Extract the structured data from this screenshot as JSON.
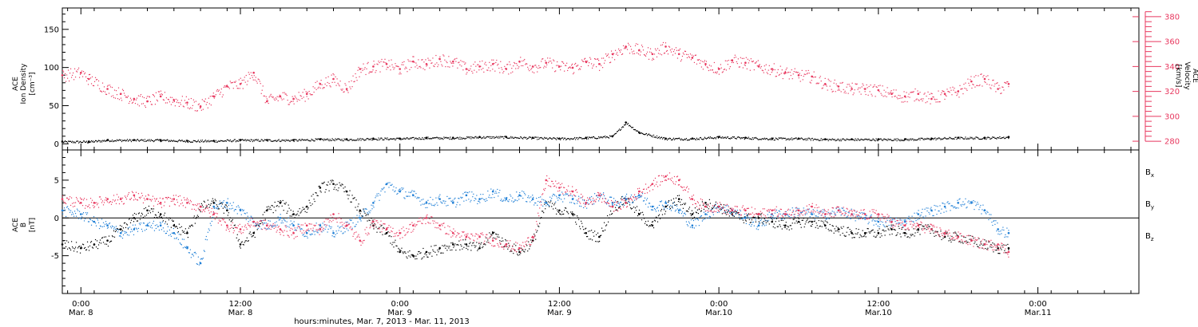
{
  "colors": {
    "density": "#000000",
    "velocity": "#e8385f",
    "bx": "#000000",
    "by": "#1f7fd6",
    "bz": "#e8385f",
    "frame": "#000000"
  },
  "time_axis": {
    "label": "hours:minutes, Mar. 7, 2013 - Mar. 11, 2013",
    "range_hours": [
      -0.7,
      39.8
    ],
    "ticks": [
      {
        "hours": 0,
        "time": "0:00",
        "date": "Mar. 8"
      },
      {
        "hours": 6,
        "time": "12:00",
        "date": "Mar. 8"
      },
      {
        "hours": 12,
        "time": "0:00",
        "date": "Mar. 9"
      },
      {
        "hours": 18,
        "time": "12:00",
        "date": "Mar. 9"
      },
      {
        "hours": 24,
        "time": "0:00",
        "date": "Mar.10"
      },
      {
        "hours": 30,
        "time": "12:00",
        "date": "Mar.10"
      },
      {
        "hours": 36,
        "time": "0:00",
        "date": "Mar.11"
      }
    ]
  },
  "chart_data": [
    {
      "type": "scatter",
      "panel": "top",
      "left_axis": {
        "label_lines": [
          "ACE",
          "Ion Density",
          "[cm⁻³]"
        ],
        "ylim": [
          -8,
          178
        ],
        "ticks": [
          0,
          50,
          100,
          150
        ]
      },
      "right_axis": {
        "label_lines": [
          "ACE",
          "Velocity",
          "[km/s]"
        ],
        "ylim": [
          273,
          387
        ],
        "ticks": [
          280,
          300,
          320,
          340,
          360,
          380
        ]
      },
      "series": [
        {
          "key": "density",
          "axis": "left",
          "x": [
            -0.7,
            0.3,
            1.0,
            2.0,
            3.0,
            4.0,
            5.0,
            6.0,
            7.0,
            8.0,
            9.0,
            10.0,
            11.0,
            12.0,
            13.0,
            14.0,
            15.0,
            16.0,
            17.0,
            18.0,
            19.0,
            20.0,
            20.5,
            21.0,
            22.0,
            23.0,
            24.0,
            25.0,
            26.0,
            27.0,
            28.0,
            29.0,
            30.0,
            31.0,
            32.0,
            33.0,
            34.0,
            34.9
          ],
          "y": [
            3,
            3,
            5,
            5,
            5,
            4,
            4,
            5,
            5,
            5,
            6,
            6,
            7,
            7,
            8,
            8,
            9,
            9,
            8,
            7,
            8,
            10,
            28,
            15,
            7,
            7,
            9,
            8,
            7,
            7,
            6,
            6,
            6,
            6,
            7,
            8,
            8,
            9
          ]
        },
        {
          "key": "velocity",
          "axis": "right",
          "x": [
            -0.7,
            0.0,
            0.3,
            1.0,
            1.5,
            2.0,
            2.5,
            3.0,
            3.5,
            4.0,
            4.5,
            5.0,
            5.5,
            6.0,
            6.5,
            7.0,
            7.5,
            8.0,
            8.5,
            9.0,
            9.5,
            10.0,
            10.5,
            11.0,
            11.5,
            12.0,
            12.5,
            13.0,
            13.5,
            14.0,
            14.5,
            15.0,
            15.5,
            16.0,
            16.5,
            17.0,
            17.5,
            18.0,
            18.5,
            19.0,
            19.5,
            20.0,
            20.5,
            21.0,
            21.5,
            22.0,
            22.5,
            23.0,
            23.5,
            24.0,
            24.5,
            25.0,
            25.5,
            26.0,
            26.5,
            27.0,
            27.5,
            28.0,
            28.5,
            29.0,
            29.5,
            30.0,
            30.5,
            31.0,
            31.5,
            32.0,
            32.5,
            33.0,
            33.5,
            34.0,
            34.5,
            34.9
          ],
          "y": [
            333,
            335,
            330,
            322,
            318,
            314,
            312,
            316,
            313,
            311,
            308,
            316,
            324,
            326,
            335,
            312,
            316,
            314,
            318,
            326,
            330,
            322,
            338,
            340,
            342,
            338,
            344,
            342,
            346,
            344,
            338,
            340,
            342,
            338,
            344,
            340,
            343,
            340,
            339,
            344,
            342,
            350,
            356,
            353,
            350,
            356,
            350,
            347,
            342,
            338,
            345,
            343,
            340,
            338,
            335,
            333,
            332,
            326,
            324,
            322,
            322,
            321,
            318,
            316,
            318,
            314,
            318,
            320,
            328,
            330,
            322,
            326
          ]
        }
      ]
    },
    {
      "type": "scatter",
      "panel": "bottom",
      "left_axis": {
        "label_lines": [
          "ACE",
          "B",
          "[nT]"
        ],
        "ylim": [
          -10,
          9
        ],
        "ticks": [
          -5,
          0,
          5
        ]
      },
      "zero_line": true,
      "legend": [
        {
          "text": "B",
          "sub": "x",
          "key": "bx"
        },
        {
          "text": "B",
          "sub": "y",
          "key": "by"
        },
        {
          "text": "B",
          "sub": "z",
          "key": "bz"
        }
      ],
      "series": [
        {
          "key": "bx",
          "x": [
            -0.7,
            0.0,
            0.5,
            1.0,
            1.5,
            2.0,
            2.5,
            3.0,
            3.5,
            4.0,
            4.5,
            5.0,
            5.5,
            6.0,
            6.5,
            7.0,
            7.5,
            8.0,
            8.5,
            9.0,
            9.5,
            10.0,
            10.5,
            11.0,
            11.5,
            12.0,
            12.5,
            13.0,
            13.5,
            14.0,
            14.5,
            15.0,
            15.5,
            16.0,
            16.5,
            17.0,
            17.5,
            18.0,
            18.5,
            19.0,
            19.5,
            20.0,
            20.5,
            21.0,
            21.5,
            22.0,
            22.5,
            23.0,
            23.5,
            24.0,
            24.5,
            25.0,
            25.5,
            26.0,
            26.5,
            27.0,
            27.5,
            28.0,
            28.5,
            29.0,
            29.5,
            30.0,
            30.5,
            31.0,
            31.5,
            32.0,
            32.5,
            33.0,
            33.5,
            34.0,
            34.5,
            34.9
          ],
          "y": [
            -3.5,
            -4.0,
            -3.5,
            -3.0,
            -1.5,
            0.0,
            1.0,
            0.5,
            -1.0,
            -2.0,
            1.5,
            2.0,
            1.0,
            -3.5,
            -2.0,
            1.0,
            2.0,
            0.5,
            1.5,
            4.0,
            4.5,
            3.5,
            1.0,
            -1.0,
            -2.0,
            -4.5,
            -5.0,
            -4.5,
            -4.0,
            -3.5,
            -3.5,
            -4.0,
            -2.0,
            -3.5,
            -4.5,
            -3.0,
            2.0,
            1.0,
            0.5,
            -2.0,
            -2.5,
            1.5,
            2.5,
            0.5,
            -1.0,
            1.5,
            2.5,
            0.5,
            2.0,
            1.5,
            0.5,
            0.0,
            0.0,
            -0.5,
            -1.0,
            -0.5,
            -0.5,
            -1.0,
            -1.5,
            -2.0,
            -2.0,
            -2.0,
            -1.5,
            -2.0,
            -1.5,
            -1.5,
            -2.5,
            -2.5,
            -3.0,
            -3.5,
            -4.0,
            -4.0
          ]
        },
        {
          "key": "by",
          "x": [
            -0.7,
            0.0,
            0.5,
            1.0,
            1.5,
            2.0,
            2.5,
            3.0,
            3.5,
            4.0,
            4.5,
            5.0,
            5.5,
            6.0,
            6.5,
            7.0,
            7.5,
            8.0,
            8.5,
            9.0,
            9.5,
            10.0,
            10.5,
            11.0,
            11.5,
            12.0,
            12.5,
            13.0,
            13.5,
            14.0,
            14.5,
            15.0,
            15.5,
            16.0,
            16.5,
            17.0,
            17.5,
            18.0,
            18.5,
            19.0,
            19.5,
            20.0,
            20.5,
            21.0,
            21.5,
            22.0,
            22.5,
            23.0,
            23.5,
            24.0,
            24.5,
            25.0,
            25.5,
            26.0,
            26.5,
            27.0,
            27.5,
            28.0,
            28.5,
            29.0,
            29.5,
            30.0,
            30.5,
            31.0,
            31.5,
            32.0,
            32.5,
            33.0,
            33.5,
            34.0,
            34.5,
            34.9
          ],
          "y": [
            1.0,
            0.5,
            -0.5,
            -1.0,
            -2.0,
            -1.5,
            -1.0,
            -1.0,
            -2.0,
            -4.0,
            -6.0,
            1.5,
            2.0,
            1.0,
            -0.5,
            -1.0,
            0.0,
            -1.0,
            -2.0,
            -1.0,
            -2.0,
            -1.0,
            0.0,
            2.0,
            4.5,
            3.5,
            3.0,
            2.0,
            2.5,
            2.0,
            3.0,
            2.5,
            3.5,
            2.5,
            3.0,
            2.5,
            2.0,
            3.0,
            2.5,
            2.0,
            3.0,
            2.0,
            2.5,
            3.0,
            1.5,
            2.0,
            1.0,
            -1.0,
            0.5,
            1.5,
            1.0,
            0.0,
            -1.0,
            0.5,
            0.5,
            1.0,
            0.5,
            0.5,
            1.0,
            0.5,
            0.0,
            -0.5,
            -0.5,
            -0.5,
            0.5,
            1.0,
            1.5,
            2.0,
            2.0,
            1.0,
            -1.5,
            -2.0
          ]
        },
        {
          "key": "bz",
          "x": [
            -0.7,
            0.0,
            0.5,
            1.0,
            1.5,
            2.0,
            2.5,
            3.0,
            3.5,
            4.0,
            4.5,
            5.0,
            5.5,
            6.0,
            6.5,
            7.0,
            7.5,
            8.0,
            8.5,
            9.0,
            9.5,
            10.0,
            10.5,
            11.0,
            11.5,
            12.0,
            12.5,
            13.0,
            13.5,
            14.0,
            14.5,
            15.0,
            15.5,
            16.0,
            16.5,
            17.0,
            17.5,
            18.0,
            18.5,
            19.0,
            19.5,
            20.0,
            20.5,
            21.0,
            21.5,
            22.0,
            22.5,
            23.0,
            23.5,
            24.0,
            24.5,
            25.0,
            25.5,
            26.0,
            26.5,
            27.0,
            27.5,
            28.0,
            28.5,
            29.0,
            29.5,
            30.0,
            30.5,
            31.0,
            31.5,
            32.0,
            32.5,
            33.0,
            33.5,
            34.0,
            34.5,
            34.9
          ],
          "y": [
            2.5,
            2.0,
            2.0,
            2.5,
            2.5,
            3.0,
            2.5,
            2.0,
            2.5,
            2.0,
            1.5,
            0.5,
            -1.0,
            -1.5,
            -0.5,
            -1.0,
            -1.5,
            -2.0,
            -1.0,
            -1.5,
            0.5,
            -1.0,
            -3.0,
            -0.5,
            -1.5,
            -2.0,
            -1.0,
            0.0,
            -1.0,
            -2.0,
            -2.5,
            -2.5,
            -3.0,
            -3.5,
            -4.0,
            -2.5,
            5.0,
            4.0,
            3.5,
            2.0,
            3.0,
            1.5,
            2.0,
            3.5,
            4.5,
            5.5,
            5.0,
            2.5,
            1.5,
            1.5,
            1.0,
            1.0,
            0.5,
            1.0,
            0.5,
            1.0,
            1.5,
            0.5,
            1.0,
            0.5,
            0.5,
            0.5,
            -0.5,
            -1.0,
            -1.0,
            -1.5,
            -2.0,
            -2.5,
            -3.0,
            -3.5,
            -3.5,
            -4.5
          ]
        }
      ]
    }
  ]
}
